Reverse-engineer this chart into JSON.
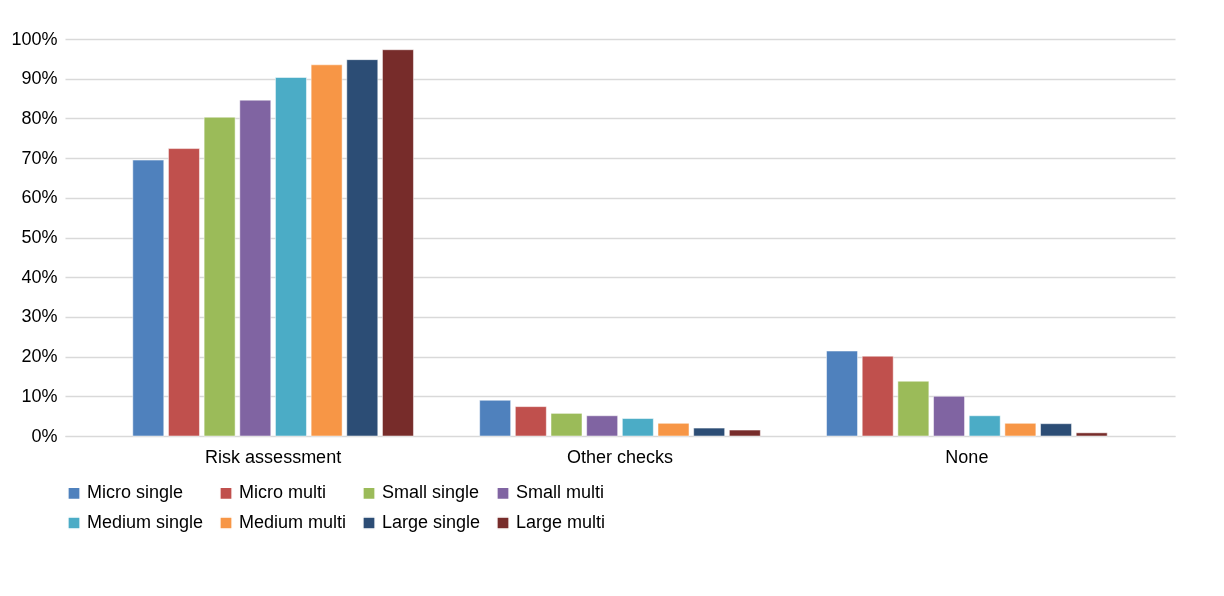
{
  "chart_data": {
    "type": "bar",
    "categories": [
      "Risk assessment",
      "Other checks",
      "None"
    ],
    "series": [
      {
        "name": "Micro single",
        "color": "#4f81bd",
        "values": [
          69.5,
          9.0,
          21.4
        ]
      },
      {
        "name": "Micro multi",
        "color": "#c0504d",
        "values": [
          72.4,
          7.4,
          20.1
        ]
      },
      {
        "name": "Small single",
        "color": "#9bbb59",
        "values": [
          80.3,
          5.7,
          13.8
        ]
      },
      {
        "name": "Small multi",
        "color": "#8064a2",
        "values": [
          84.6,
          5.1,
          10.0
        ]
      },
      {
        "name": "Medium single",
        "color": "#4bacc6",
        "values": [
          90.3,
          4.4,
          5.1
        ]
      },
      {
        "name": "Medium multi",
        "color": "#f79646",
        "values": [
          93.5,
          3.2,
          3.2
        ]
      },
      {
        "name": "Large single",
        "color": "#2c4d75",
        "values": [
          94.8,
          2.0,
          3.1
        ]
      },
      {
        "name": "Large multi",
        "color": "#772c2a",
        "values": [
          97.3,
          1.5,
          0.8
        ]
      }
    ],
    "ylim": [
      0,
      100
    ],
    "yticks": [
      {
        "value": 0,
        "label": "0%"
      },
      {
        "value": 10,
        "label": "10%"
      },
      {
        "value": 20,
        "label": "20%"
      },
      {
        "value": 30,
        "label": "30%"
      },
      {
        "value": 40,
        "label": "40%"
      },
      {
        "value": 50,
        "label": "50%"
      },
      {
        "value": 60,
        "label": "60%"
      },
      {
        "value": 70,
        "label": "70%"
      },
      {
        "value": 80,
        "label": "80%"
      },
      {
        "value": 90,
        "label": "90%"
      },
      {
        "value": 100,
        "label": "100%"
      }
    ],
    "grid": "y",
    "legend": "bottom"
  }
}
